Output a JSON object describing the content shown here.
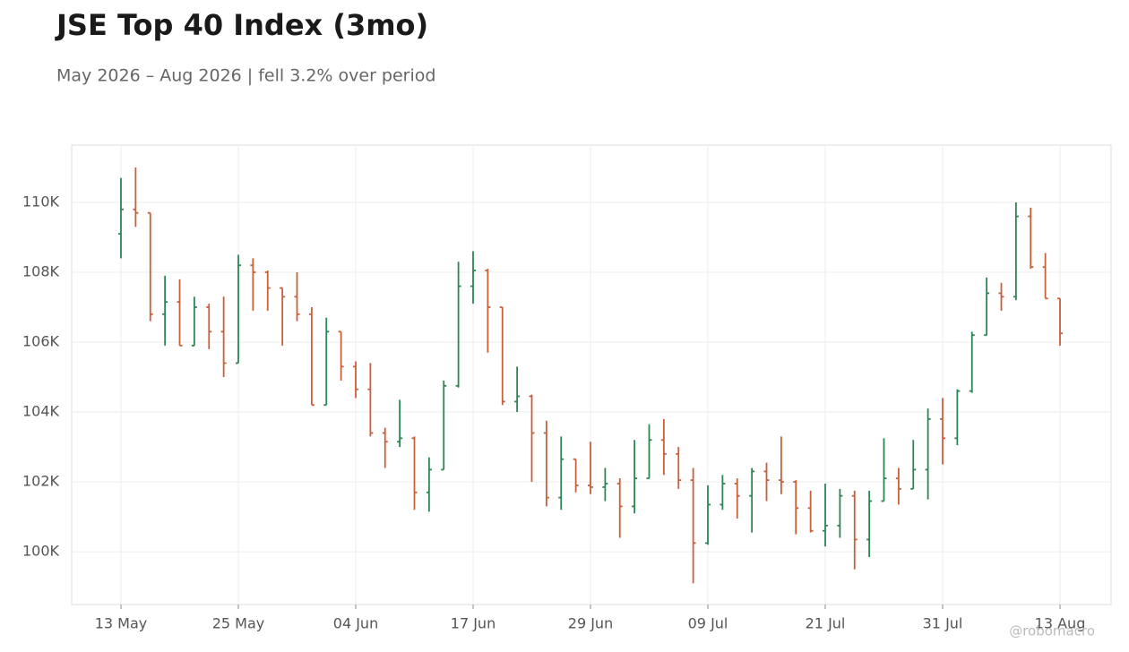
{
  "chart_data": {
    "type": "ohlc",
    "title": "JSE Top 40 Index (3mo)",
    "subtitle": "May 2026 – Aug 2026 | fell 3.2% over period",
    "watermark": "@robomacro",
    "categories": [
      "13 May",
      null,
      null,
      null,
      null,
      null,
      null,
      null,
      "25 May",
      null,
      null,
      null,
      null,
      null,
      null,
      null,
      "04 Jun",
      null,
      null,
      null,
      null,
      null,
      null,
      null,
      "17 Jun",
      null,
      null,
      null,
      null,
      null,
      null,
      null,
      "29 Jun",
      null,
      null,
      null,
      null,
      null,
      null,
      null,
      "09 Jul",
      null,
      null,
      null,
      null,
      null,
      null,
      null,
      "21 Jul",
      null,
      null,
      null,
      null,
      null,
      null,
      null,
      "31 Jul",
      null,
      null,
      null,
      null,
      null,
      null,
      null,
      "13 Aug"
    ],
    "open": [
      109100,
      109800,
      109700,
      106800,
      107150,
      105900,
      107000,
      106300,
      105400,
      108200,
      108000,
      107550,
      107300,
      106800,
      104200,
      106300,
      105300,
      104650,
      103400,
      103150,
      103250,
      101700,
      102350,
      104750,
      107600,
      108050,
      107000,
      104300,
      104450,
      103400,
      101550,
      102650,
      101900,
      101850,
      101950,
      101300,
      102100,
      103200,
      102800,
      102050,
      100250,
      101350,
      101950,
      101600,
      102300,
      102050,
      102000,
      101250,
      100600,
      100750,
      101600,
      100350,
      101450,
      102100,
      101800,
      102350,
      103800,
      103250,
      104600,
      106200,
      107400,
      107300,
      109600,
      108150,
      107250
    ],
    "high": [
      110700,
      111000,
      109700,
      107900,
      107800,
      107300,
      107100,
      107300,
      108500,
      108400,
      108050,
      107550,
      108000,
      107000,
      106700,
      106300,
      105450,
      105400,
      103550,
      104350,
      103300,
      102700,
      104900,
      108300,
      108600,
      108100,
      107000,
      105300,
      104500,
      103750,
      103300,
      102650,
      103150,
      102400,
      102100,
      103200,
      103650,
      103800,
      103000,
      102400,
      101900,
      102200,
      102100,
      102400,
      102550,
      103300,
      102050,
      101750,
      101950,
      101800,
      101750,
      101750,
      103250,
      102400,
      103200,
      104100,
      104400,
      104650,
      106300,
      107850,
      107700,
      110000,
      109850,
      108550,
      107250
    ],
    "low": [
      108400,
      109300,
      106600,
      105900,
      105900,
      105900,
      105800,
      105000,
      105400,
      106900,
      106900,
      105900,
      106600,
      104200,
      104200,
      104900,
      104400,
      103300,
      102400,
      103000,
      101200,
      101150,
      102350,
      104700,
      107100,
      105700,
      104200,
      104000,
      102000,
      101300,
      101200,
      101700,
      101650,
      101450,
      100400,
      101100,
      102100,
      102200,
      101800,
      99100,
      100200,
      101200,
      100950,
      100550,
      101450,
      101650,
      100500,
      100550,
      100150,
      100400,
      99500,
      99850,
      101450,
      101350,
      101800,
      101500,
      102500,
      103050,
      104550,
      106200,
      106900,
      107200,
      108100,
      107250,
      105900
    ],
    "close": [
      109800,
      109700,
      106800,
      107150,
      105900,
      107000,
      106300,
      105400,
      108200,
      108000,
      107550,
      107300,
      106800,
      104200,
      106300,
      105300,
      104650,
      103400,
      103150,
      103250,
      101700,
      102350,
      104750,
      107600,
      108050,
      107000,
      104300,
      104450,
      103400,
      101550,
      102650,
      101900,
      101850,
      101950,
      101300,
      102100,
      103200,
      102800,
      102050,
      100250,
      101350,
      101950,
      101600,
      102300,
      102050,
      102000,
      101250,
      100600,
      100750,
      101600,
      100350,
      101450,
      102100,
      101800,
      102350,
      103800,
      103250,
      104600,
      106200,
      107400,
      107300,
      109600,
      108150,
      107250,
      106250
    ],
    "up_color": "#2e8554",
    "down_color": "#c8603c",
    "ylim": [
      98490,
      111640
    ],
    "yticks": [
      {
        "value": 100000,
        "label": "100K"
      },
      {
        "value": 102000,
        "label": "102K"
      },
      {
        "value": 104000,
        "label": "104K"
      },
      {
        "value": 106000,
        "label": "106K"
      },
      {
        "value": 108000,
        "label": "108K"
      },
      {
        "value": 110000,
        "label": "110K"
      }
    ],
    "grid": true
  }
}
